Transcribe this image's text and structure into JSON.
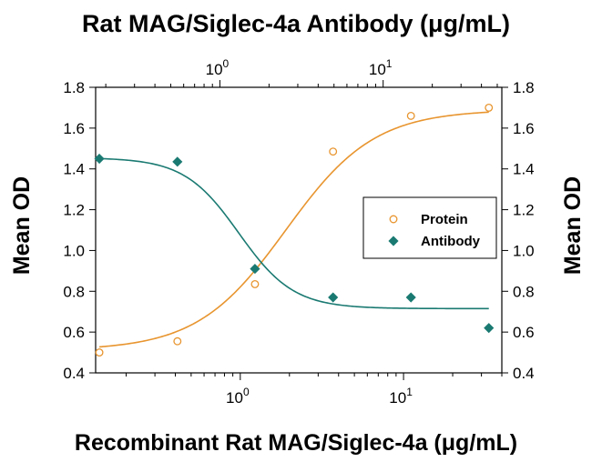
{
  "chart_data": {
    "type": "scatter",
    "title": "Rat MAG/Siglec-4a Antibody (μg/mL)",
    "xlabel": "Recombinant Rat MAG/Siglec-4a (μg/mL)",
    "ylabel": "Mean OD",
    "y2label": "Mean OD",
    "x_scale": "log",
    "xlim": [
      0.13,
      40
    ],
    "ylim": [
      0.4,
      1.8
    ],
    "y_ticks": [
      "0.4",
      "0.6",
      "0.8",
      "1.0",
      "1.2",
      "1.4",
      "1.6",
      "1.8"
    ],
    "x_ticks": [
      {
        "value": 1,
        "base": "10",
        "exp": "0"
      },
      {
        "value": 10,
        "base": "10",
        "exp": "1"
      }
    ],
    "top_x_ticks": [
      {
        "value": 1,
        "base": "10",
        "exp": "0"
      },
      {
        "value": 10,
        "base": "10",
        "exp": "1"
      }
    ],
    "top_axis_offset_factor": 0.75,
    "legend_position": "center-right",
    "grid": false,
    "series": [
      {
        "name": "Protein",
        "marker": "circle-open",
        "color": "#E8952F",
        "x": [
          0.137,
          0.412,
          1.23,
          3.7,
          11.1,
          33.3
        ],
        "y": [
          0.5,
          0.555,
          0.835,
          1.485,
          1.66,
          1.7
        ],
        "fit": {
          "bottom": 0.51,
          "top": 1.69,
          "ec50": 1.9,
          "hill": 1.6
        }
      },
      {
        "name": "Antibody",
        "marker": "diamond-filled",
        "color": "#1A7A72",
        "x": [
          0.137,
          0.412,
          1.23,
          3.7,
          11.1,
          33.3
        ],
        "y": [
          1.45,
          1.435,
          0.91,
          0.77,
          0.77,
          0.62
        ],
        "fit": {
          "bottom": 0.715,
          "top": 1.455,
          "ec50": 0.98,
          "hill": 2.6
        }
      }
    ]
  }
}
